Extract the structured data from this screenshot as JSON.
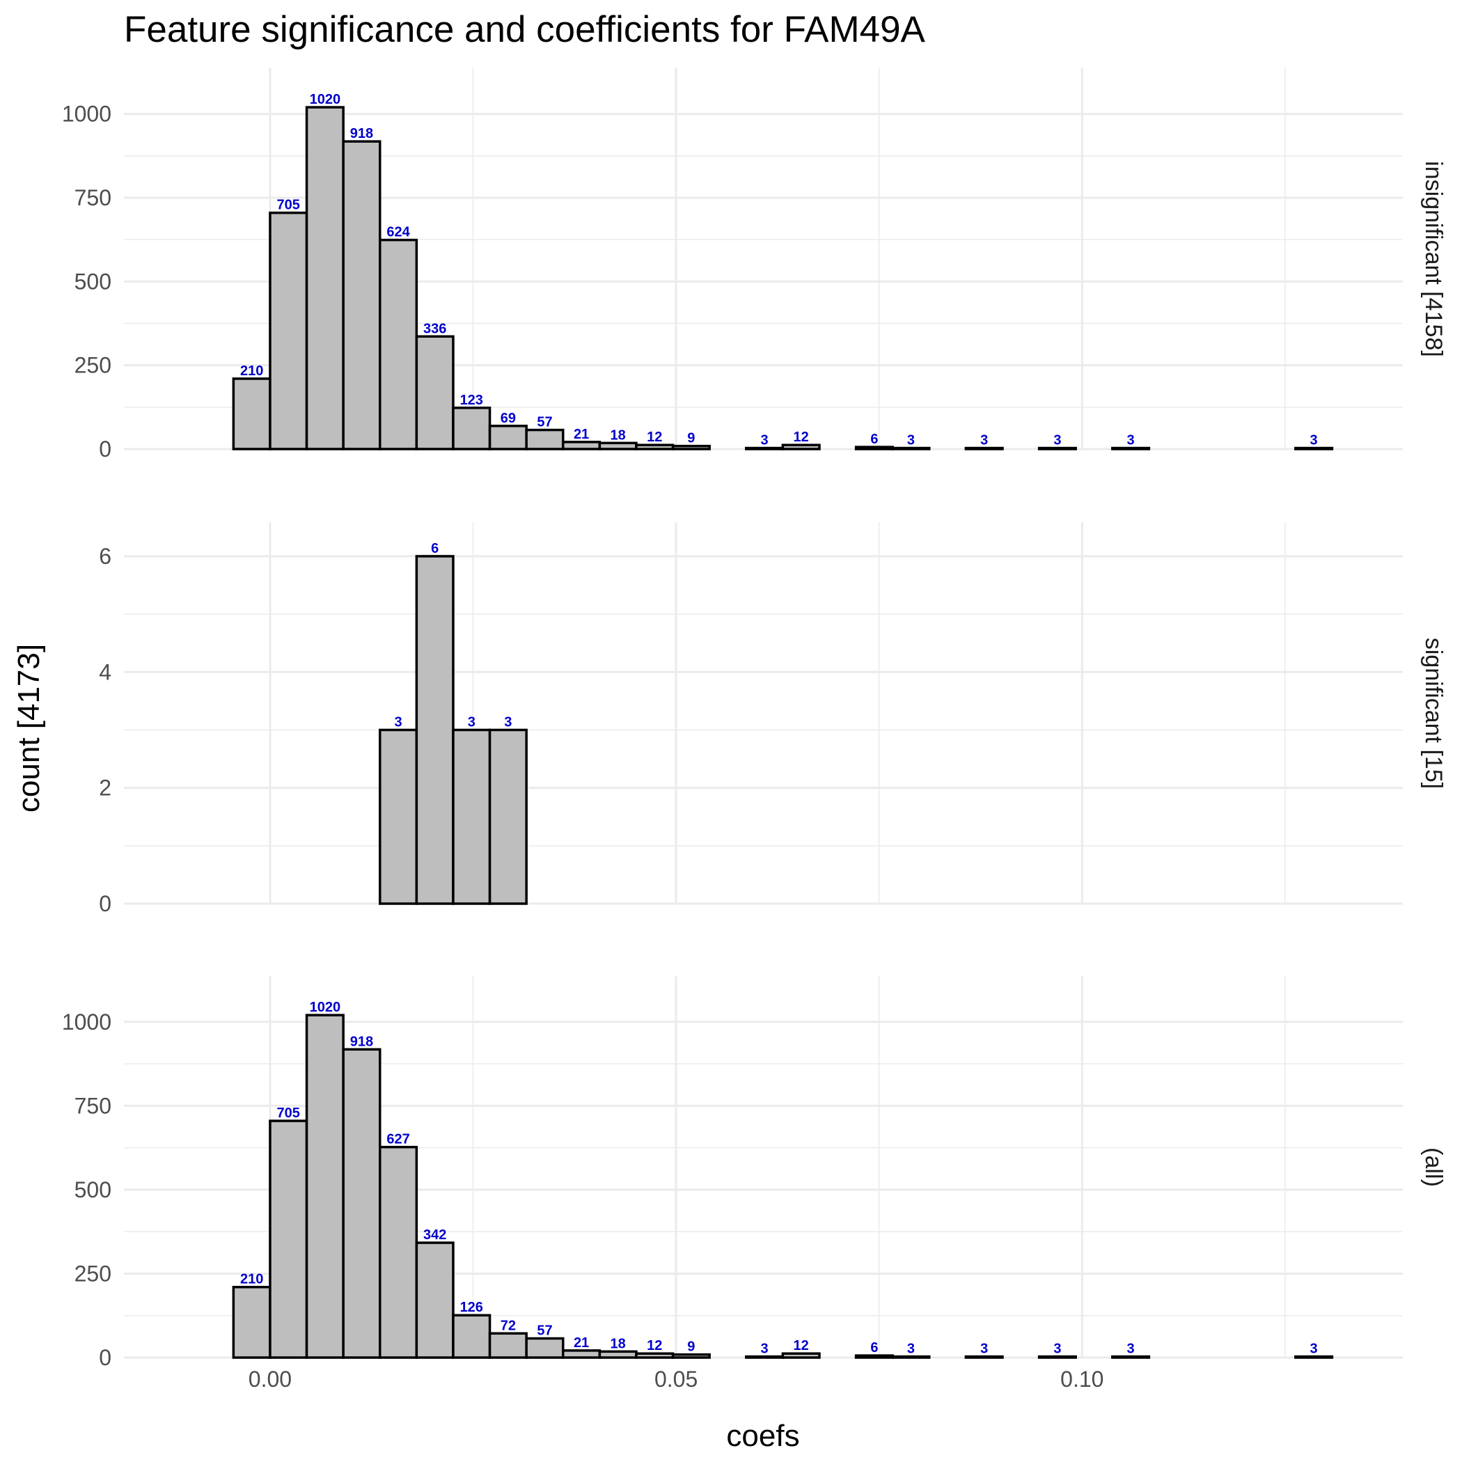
{
  "chart_data": {
    "type": "bar",
    "title": "Feature significance and coefficients for FAM49A",
    "xlabel": "coefs",
    "ylabel": "count [4173]",
    "x_ticks": [
      "0.00",
      "0.05",
      "0.10"
    ],
    "x_tick_values": [
      0,
      0.05,
      0.1
    ],
    "xlim": [
      -0.018,
      0.1395
    ],
    "bin_width": 0.00451,
    "bin_start": -0.00451,
    "grid": true,
    "legend": "none",
    "colors": {
      "bar_fill": "#bebebe",
      "bar_stroke": "#000000",
      "label": "#0000cc",
      "grid": "#ebebeb"
    },
    "panels": [
      {
        "strip": "insignificant [4158]",
        "ylim": [
          0,
          1070
        ],
        "y_ticks": [
          "0",
          "250",
          "500",
          "750",
          "1000"
        ],
        "y_tick_values": [
          0,
          250,
          500,
          750,
          1000
        ],
        "values": [
          210,
          705,
          1020,
          918,
          624,
          336,
          123,
          69,
          57,
          21,
          18,
          12,
          9,
          0,
          3,
          12,
          0,
          6,
          3,
          0,
          3,
          0,
          3,
          0,
          3,
          0,
          0,
          0,
          0,
          3
        ]
      },
      {
        "strip": "significant [15]",
        "ylim": [
          0,
          6.3
        ],
        "y_ticks": [
          "0",
          "2",
          "4",
          "6"
        ],
        "y_tick_values": [
          0,
          2,
          4,
          6
        ],
        "values": [
          0,
          0,
          0,
          0,
          3,
          6,
          3,
          3,
          0,
          0,
          0,
          0,
          0,
          0,
          0,
          0,
          0,
          0,
          0,
          0,
          0,
          0,
          0,
          0,
          0,
          0,
          0,
          0,
          0,
          0
        ]
      },
      {
        "strip": "(all)",
        "ylim": [
          0,
          1070
        ],
        "y_ticks": [
          "0",
          "250",
          "500",
          "750",
          "1000"
        ],
        "y_tick_values": [
          0,
          250,
          500,
          750,
          1000
        ],
        "values": [
          210,
          705,
          1020,
          918,
          627,
          342,
          126,
          72,
          57,
          21,
          18,
          12,
          9,
          0,
          3,
          12,
          0,
          6,
          3,
          0,
          3,
          0,
          3,
          0,
          3,
          0,
          0,
          0,
          0,
          3
        ]
      }
    ]
  }
}
